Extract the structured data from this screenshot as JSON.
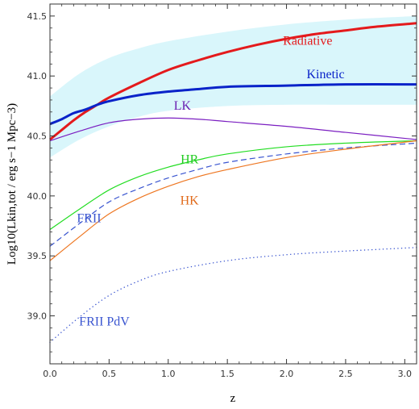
{
  "chart_data": {
    "type": "line",
    "xlabel": "z",
    "ylabel": "Log10(Lkin,tot / erg s−1 Mpc−3)",
    "xlim": [
      0,
      3.1
    ],
    "ylim": [
      38.6,
      41.6
    ],
    "x_ticks": [
      "0.0",
      "0.5",
      "1.0",
      "1.5",
      "2.0",
      "2.5",
      "3.0"
    ],
    "y_ticks": [
      "39.0",
      "39.5",
      "40.0",
      "40.5",
      "41.0",
      "41.5"
    ],
    "grid": false,
    "band": {
      "color": "#d9f6fb",
      "x": [
        0.0,
        0.25,
        0.5,
        0.75,
        1.0,
        1.5,
        2.0,
        2.5,
        3.1
      ],
      "upper": [
        40.83,
        41.02,
        41.15,
        41.23,
        41.29,
        41.37,
        41.43,
        41.47,
        41.5
      ],
      "lower": [
        40.32,
        40.47,
        40.58,
        40.66,
        40.71,
        40.75,
        40.76,
        40.76,
        40.76
      ]
    },
    "series": [
      {
        "name": "Radiative",
        "color": "#e41a1c",
        "style": "solid",
        "width": 3,
        "x": [
          0.0,
          0.1,
          0.2,
          0.3,
          0.4,
          0.5,
          0.75,
          1.0,
          1.25,
          1.5,
          1.75,
          2.0,
          2.25,
          2.5,
          2.75,
          3.1
        ],
        "values": [
          40.47,
          40.55,
          40.63,
          40.7,
          40.76,
          40.82,
          40.94,
          41.05,
          41.13,
          41.2,
          41.26,
          41.31,
          41.35,
          41.38,
          41.41,
          41.44
        ]
      },
      {
        "name": "Kinetic",
        "color": "#0a23c9",
        "style": "solid",
        "width": 3,
        "x": [
          0.0,
          0.1,
          0.2,
          0.3,
          0.4,
          0.5,
          0.75,
          1.0,
          1.25,
          1.5,
          2.0,
          2.5,
          3.1
        ],
        "values": [
          40.6,
          40.64,
          40.69,
          40.72,
          40.76,
          40.79,
          40.84,
          40.87,
          40.89,
          40.91,
          40.92,
          40.93,
          40.93
        ]
      },
      {
        "name": "LK",
        "color": "#7b1fc1",
        "style": "solid",
        "width": 1.2,
        "x": [
          0.0,
          0.25,
          0.5,
          0.75,
          1.0,
          1.25,
          1.5,
          2.0,
          2.5,
          3.1
        ],
        "values": [
          40.46,
          40.54,
          40.61,
          40.64,
          40.65,
          40.64,
          40.62,
          40.58,
          40.53,
          40.47
        ]
      },
      {
        "name": "HR",
        "color": "#22dd22",
        "style": "solid",
        "width": 1.2,
        "x": [
          0.0,
          0.25,
          0.5,
          0.75,
          1.0,
          1.25,
          1.5,
          2.0,
          2.5,
          3.1
        ],
        "values": [
          39.72,
          39.89,
          40.05,
          40.16,
          40.24,
          40.3,
          40.35,
          40.41,
          40.44,
          40.46
        ]
      },
      {
        "name": "FRII",
        "color": "#3a55d0",
        "style": "dashed",
        "width": 1.2,
        "x": [
          0.0,
          0.25,
          0.5,
          0.75,
          1.0,
          1.25,
          1.5,
          2.0,
          2.5,
          3.1
        ],
        "values": [
          39.58,
          39.77,
          39.95,
          40.06,
          40.15,
          40.22,
          40.28,
          40.35,
          40.4,
          40.44
        ]
      },
      {
        "name": "HK",
        "color": "#ee7722",
        "style": "solid",
        "width": 1.2,
        "x": [
          0.0,
          0.25,
          0.5,
          0.75,
          1.0,
          1.25,
          1.5,
          2.0,
          2.5,
          3.1
        ],
        "values": [
          39.46,
          39.66,
          39.85,
          39.98,
          40.08,
          40.16,
          40.22,
          40.32,
          40.39,
          40.46
        ]
      },
      {
        "name": "FRII PdV",
        "color": "#3a55d0",
        "style": "dotted",
        "width": 1.4,
        "x": [
          0.0,
          0.25,
          0.5,
          0.75,
          1.0,
          1.5,
          2.0,
          2.5,
          3.1
        ],
        "values": [
          38.78,
          38.99,
          39.17,
          39.29,
          39.37,
          39.46,
          39.51,
          39.54,
          39.57
        ]
      }
    ],
    "annotations": [
      {
        "text": "Radiative",
        "color": "#e41a1c",
        "bold": false
      },
      {
        "text": "Kinetic",
        "color": "#0a23c9",
        "bold": false
      },
      {
        "text": "LK",
        "color": "#6a1fb1",
        "bold": false
      },
      {
        "text": "HR",
        "color": "#22cc22",
        "bold": false
      },
      {
        "text": "HK",
        "color": "#e06a1a",
        "bold": false
      },
      {
        "text": "FRII",
        "color": "#3a55d0",
        "bold": false
      },
      {
        "text": "FRII PdV",
        "color": "#3a55d0",
        "bold": false
      }
    ]
  }
}
